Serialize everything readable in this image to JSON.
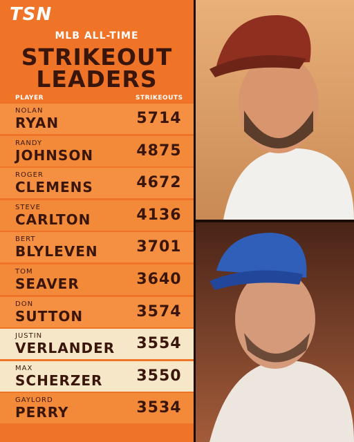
{
  "header": {
    "logo": "TSN",
    "subtitle": "MLB ALL-TIME",
    "title_line1": "STRIKEOUT",
    "title_line2": "LEADERS"
  },
  "table": {
    "columns": [
      "PLAYER",
      "STRIKEOUTS"
    ],
    "rows": [
      {
        "first": "NOLAN",
        "last": "RYAN",
        "strikeouts": 5714,
        "highlight": false
      },
      {
        "first": "RANDY",
        "last": "JOHNSON",
        "strikeouts": 4875,
        "highlight": false
      },
      {
        "first": "ROGER",
        "last": "CLEMENS",
        "strikeouts": 4672,
        "highlight": false
      },
      {
        "first": "STEVE",
        "last": "CARLTON",
        "strikeouts": 4136,
        "highlight": false
      },
      {
        "first": "BERT",
        "last": "BLYLEVEN",
        "strikeouts": 3701,
        "highlight": false
      },
      {
        "first": "TOM",
        "last": "SEAVER",
        "strikeouts": 3640,
        "highlight": false
      },
      {
        "first": "DON",
        "last": "SUTTON",
        "strikeouts": 3574,
        "highlight": false
      },
      {
        "first": "JUSTIN",
        "last": "VERLANDER",
        "strikeouts": 3554,
        "highlight": true
      },
      {
        "first": "MAX",
        "last": "SCHERZER",
        "strikeouts": 3550,
        "highlight": true
      },
      {
        "first": "GAYLORD",
        "last": "PERRY",
        "strikeouts": 3534,
        "highlight": false
      }
    ]
  }
}
